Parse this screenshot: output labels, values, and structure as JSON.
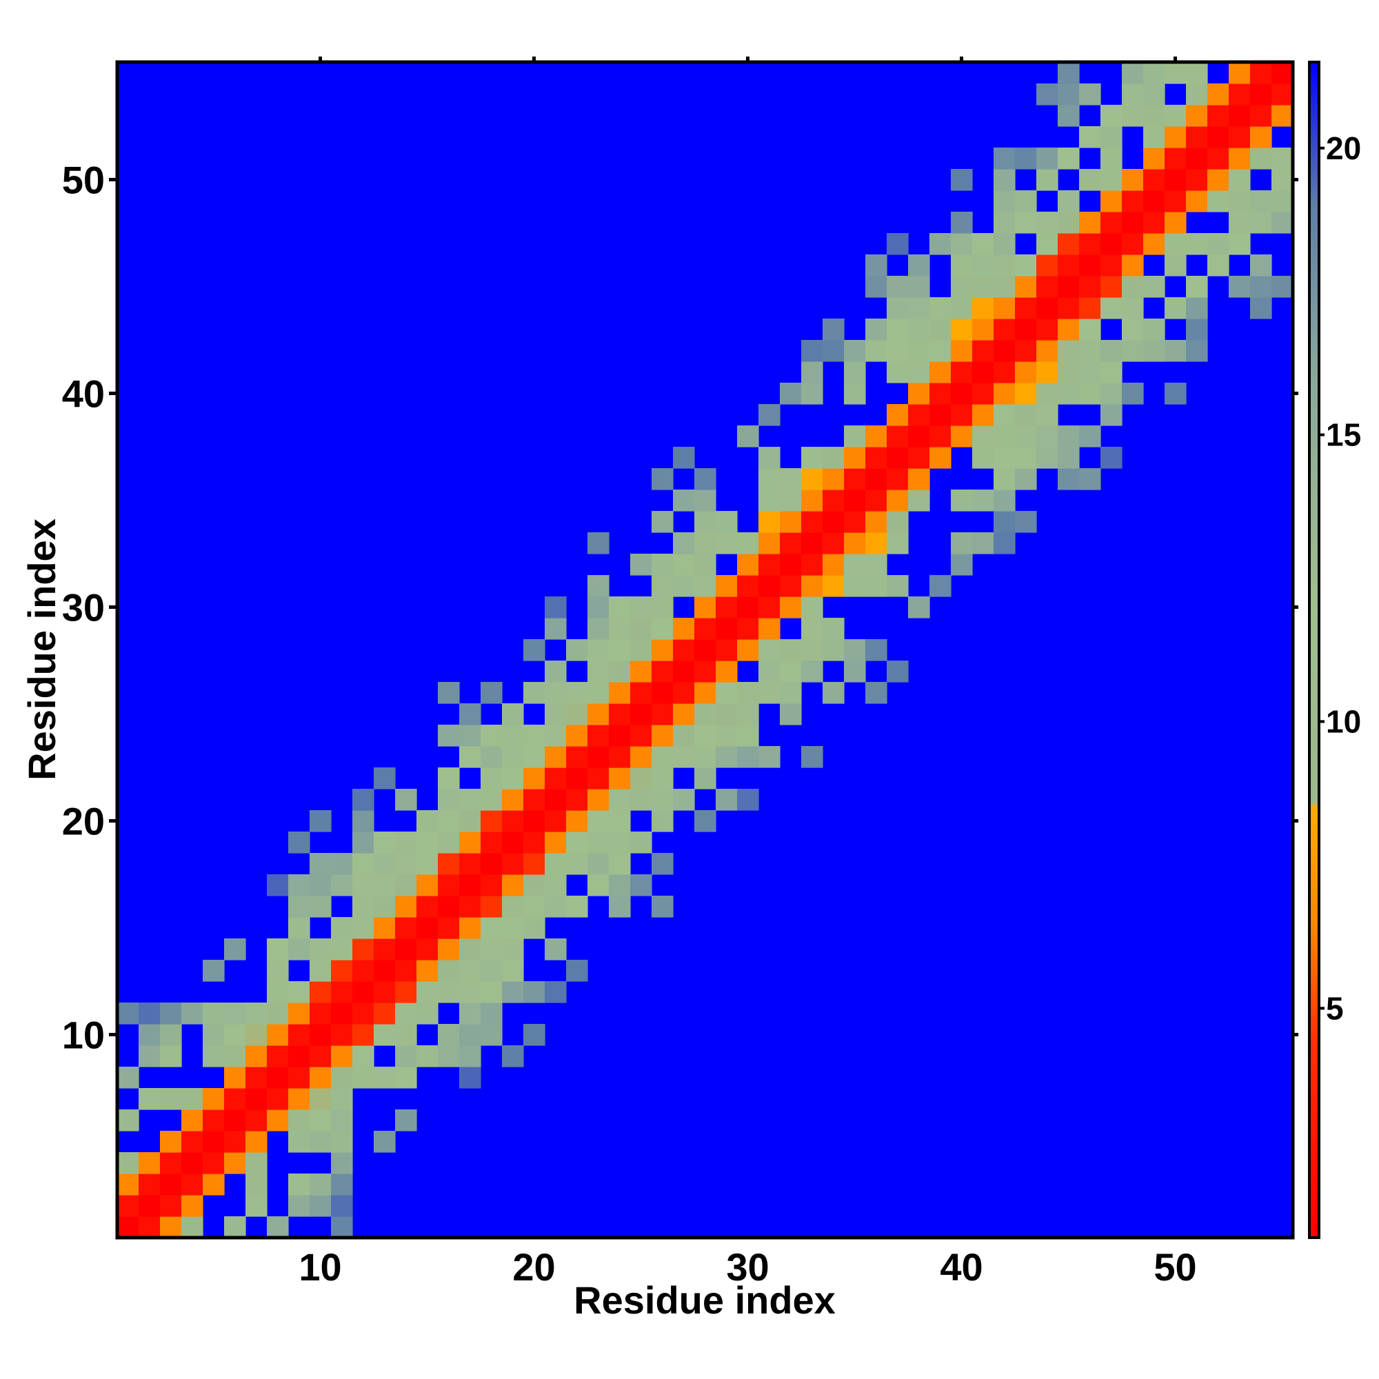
{
  "chart_data": {
    "type": "heatmap",
    "title": "",
    "xlabel": "Residue index",
    "ylabel": "Residue index",
    "n_residues": 55,
    "xlim": [
      1,
      55
    ],
    "ylim": [
      1,
      55
    ],
    "x_ticks": [
      10,
      20,
      30,
      40,
      50
    ],
    "y_ticks": [
      10,
      20,
      30,
      40,
      50
    ],
    "colorbar": {
      "min": 1,
      "max": 21.5,
      "ticks": [
        5,
        10,
        15,
        20
      ],
      "stops": [
        {
          "value": 1,
          "color": "#ff0000"
        },
        {
          "value": 4.5,
          "color": "#ff3300"
        },
        {
          "value": 6.5,
          "color": "#ff8800"
        },
        {
          "value": 8.5,
          "color": "#ffaa00"
        },
        {
          "value": 8.6,
          "color": "#9cb88c"
        },
        {
          "value": 12,
          "color": "#9fbf8e"
        },
        {
          "value": 16,
          "color": "#8aa89a"
        },
        {
          "value": 19,
          "color": "#5e7fa8"
        },
        {
          "value": 21.5,
          "color": "#0000ff"
        }
      ]
    },
    "background_value": 21.5,
    "legend": "colorbar right",
    "grid": false,
    "value_description": "Symmetric residue-residue distance map, red along diagonal (small values), orange at |i-j|=2, grey-green band for |i-j| up to about 8, blue elsewhere",
    "offdiag_profile": [
      {
        "offset": 0,
        "value": 1
      },
      {
        "offset": 1,
        "value": 2
      },
      {
        "offset": 2,
        "value": 6.5
      },
      {
        "offset": 3,
        "value": 10
      },
      {
        "offset": 4,
        "value": 11
      },
      {
        "offset": 5,
        "value": 12
      },
      {
        "offset": 6,
        "value": 13
      },
      {
        "offset": 7,
        "value": 15
      },
      {
        "offset": 8,
        "value": 17
      }
    ]
  }
}
